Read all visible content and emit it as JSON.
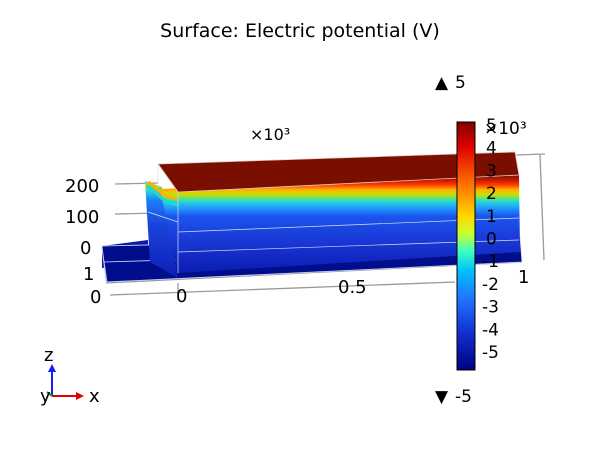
{
  "title": "Surface: Electric potential (V)",
  "chart_data": {
    "type": "heatmap",
    "title": "Surface: Electric potential (V)",
    "quantity": "Electric potential (V)",
    "colormap": "rainbow",
    "range": [
      -5000,
      5000
    ],
    "max_label": "5",
    "min_label": "-5",
    "max_arrow": "▲",
    "min_arrow": "▼",
    "colorbar": {
      "multiplier": "×10³",
      "ticks": [
        "5",
        "4",
        "3",
        "2",
        "1",
        "0",
        "-1",
        "-2",
        "-3",
        "-4",
        "-5"
      ]
    },
    "axes_multiplier": "×10³",
    "axis_labels": {
      "y_left_ticks": [
        "200",
        "100",
        "0"
      ],
      "z_ticks": [
        "1",
        "0"
      ],
      "x_ticks": [
        "0",
        "0.5",
        "1"
      ]
    },
    "triad": {
      "z": "z",
      "y": "y",
      "x": "x"
    },
    "colors": {
      "top": "#7a0f00",
      "bottom": "#000e8c",
      "front_face_mid": "#1b35d8",
      "base_slab": "#000e8c"
    }
  }
}
